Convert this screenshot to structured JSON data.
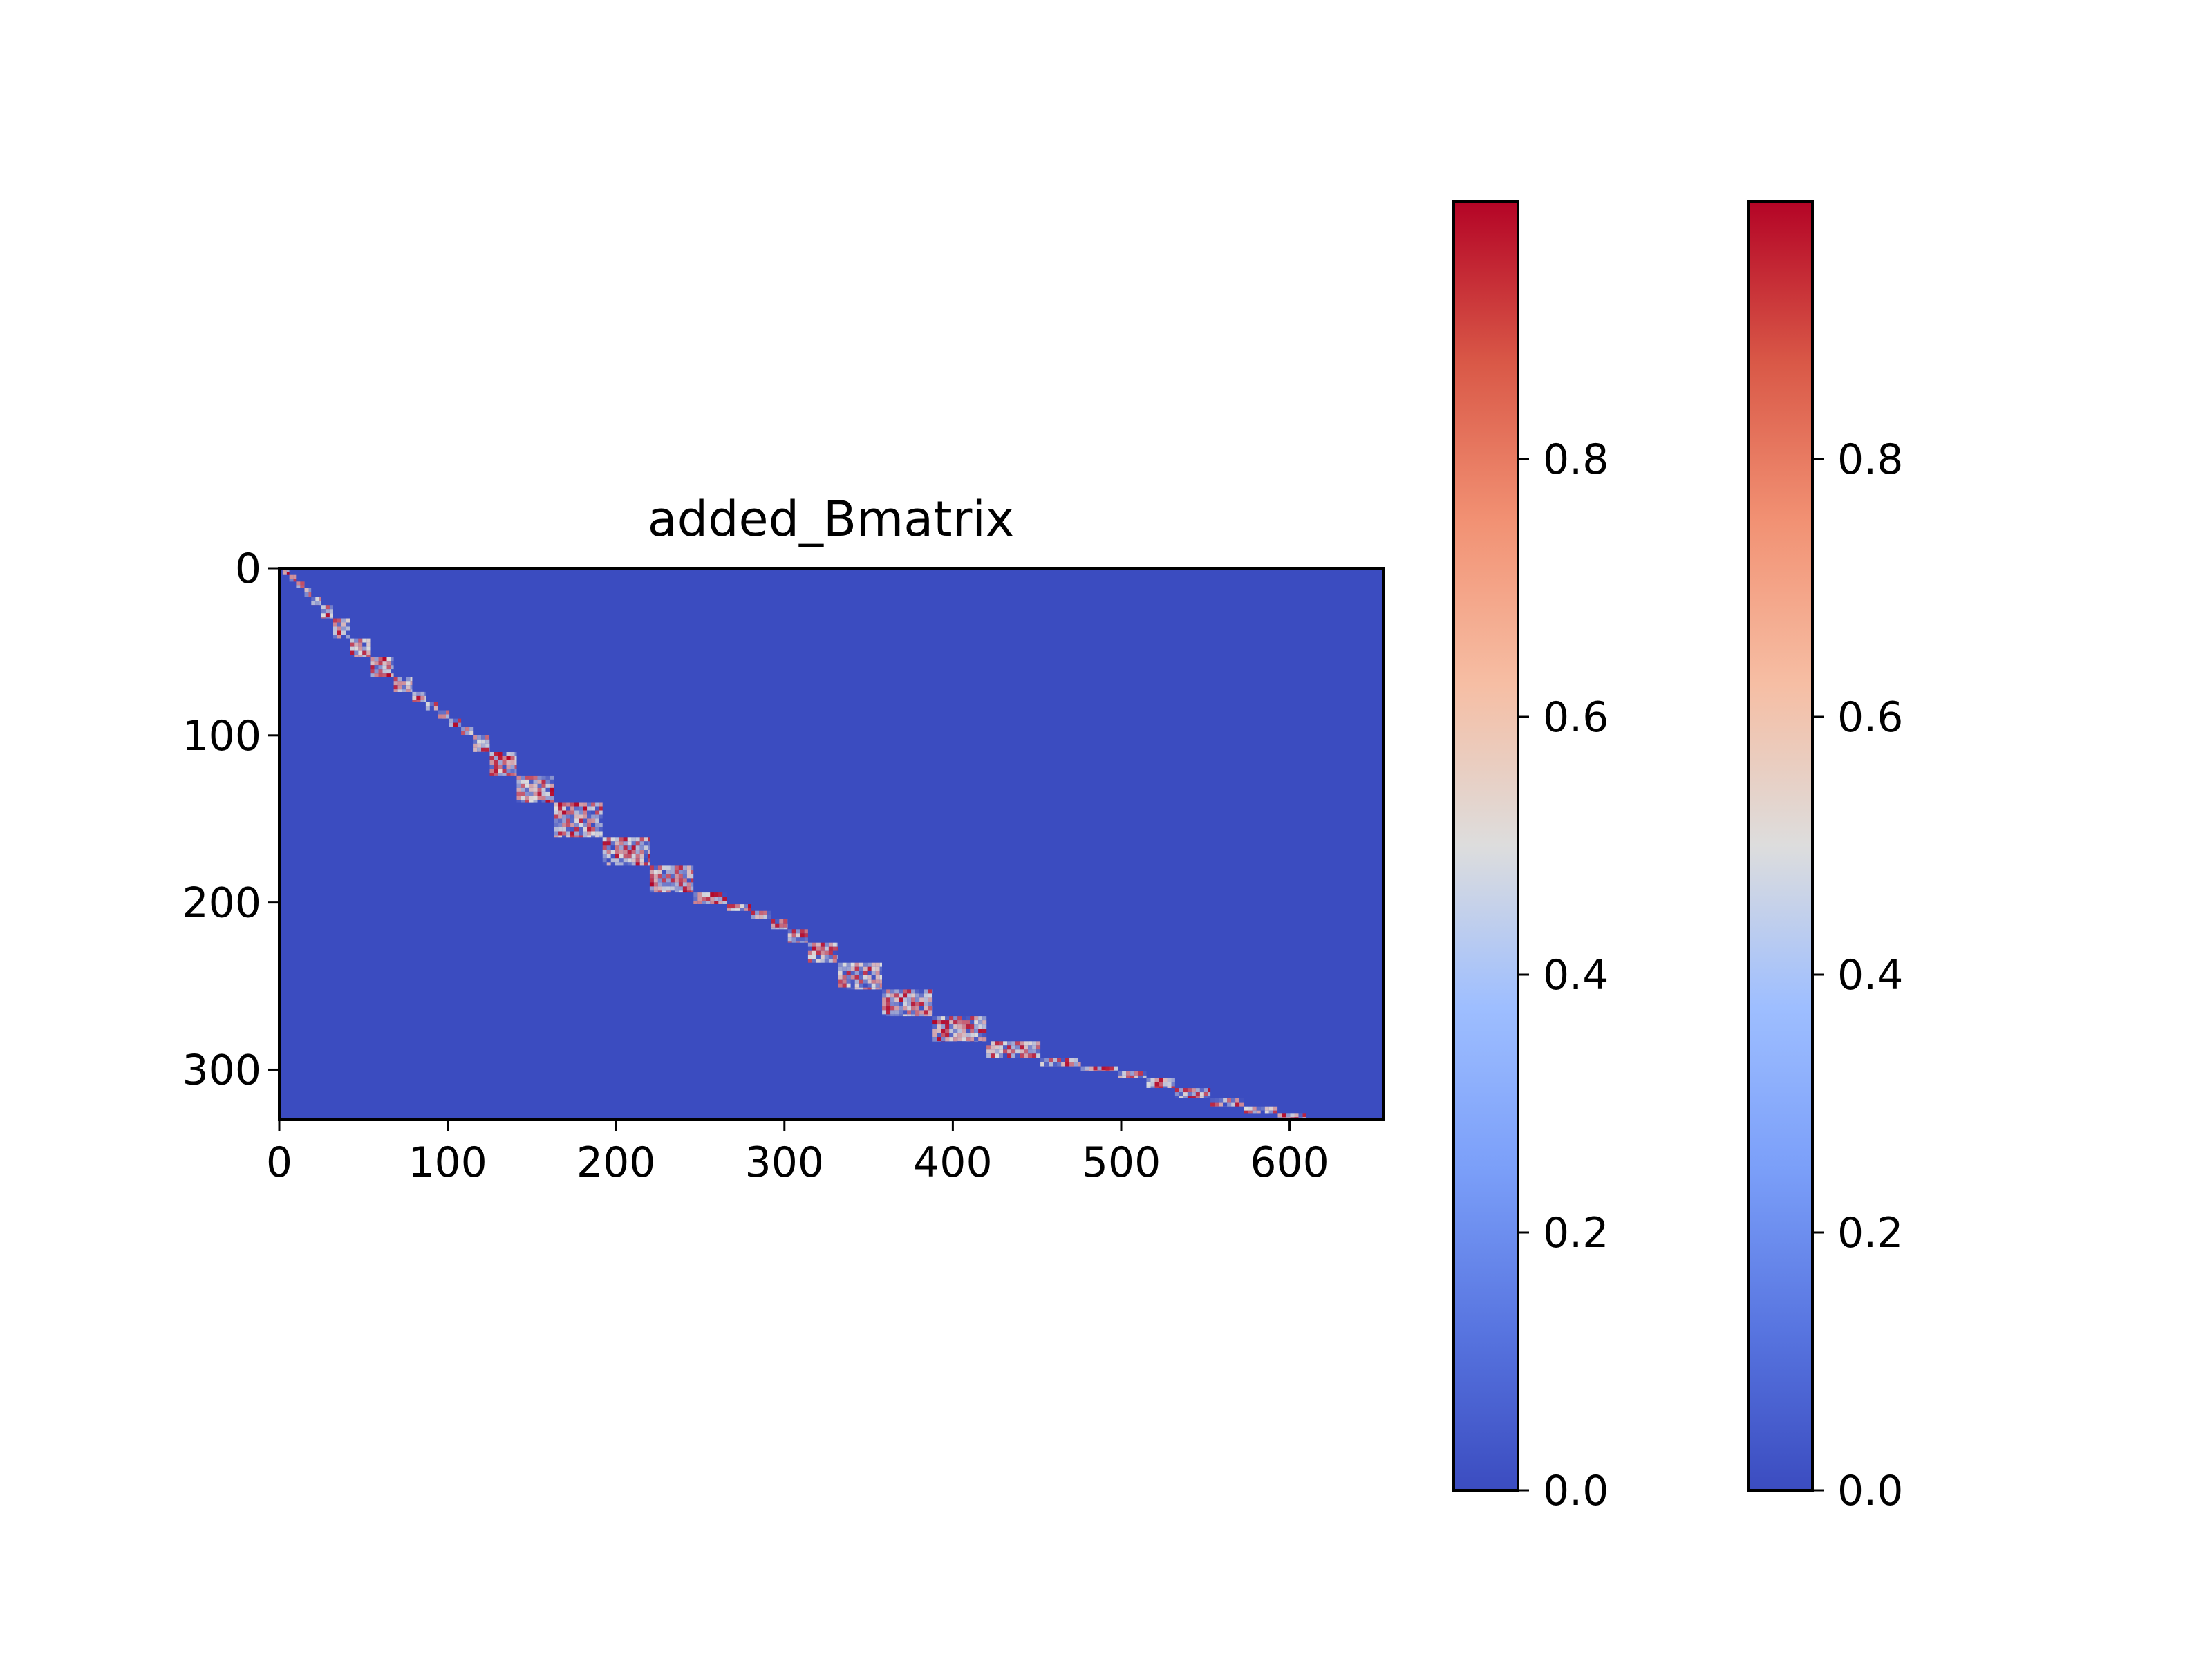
{
  "chart_data": {
    "type": "heatmap",
    "title": "added_Bmatrix",
    "xlabel": "",
    "ylabel": "",
    "x_range": [
      0,
      656
    ],
    "y_range": [
      330,
      0
    ],
    "x_ticks": [
      0,
      100,
      200,
      300,
      400,
      500,
      600
    ],
    "x_tick_labels": [
      "0",
      "100",
      "200",
      "300",
      "400",
      "500",
      "600"
    ],
    "y_ticks": [
      0,
      100,
      200,
      300
    ],
    "y_tick_labels": [
      "0",
      "100",
      "200",
      "300"
    ],
    "colormap": "coolwarm",
    "colormap_low": "#3b4cc0",
    "colormap_mid": "#dddddd",
    "colormap_high": "#b40426",
    "background_value": 0.0,
    "value_range": [
      0.0,
      1.0
    ],
    "blocks": [
      {
        "x": [
          2,
          6
        ],
        "y": [
          0,
          4
        ]
      },
      {
        "x": [
          6,
          10
        ],
        "y": [
          4,
          8
        ]
      },
      {
        "x": [
          10,
          15
        ],
        "y": [
          8,
          12
        ]
      },
      {
        "x": [
          15,
          19
        ],
        "y": [
          12,
          17
        ]
      },
      {
        "x": [
          19,
          25
        ],
        "y": [
          17,
          22
        ]
      },
      {
        "x": [
          25,
          32
        ],
        "y": [
          22,
          30
        ]
      },
      {
        "x": [
          32,
          42
        ],
        "y": [
          30,
          42
        ]
      },
      {
        "x": [
          42,
          54
        ],
        "y": [
          42,
          53
        ]
      },
      {
        "x": [
          54,
          68
        ],
        "y": [
          53,
          65
        ]
      },
      {
        "x": [
          68,
          79
        ],
        "y": [
          65,
          74
        ]
      },
      {
        "x": [
          79,
          87
        ],
        "y": [
          74,
          80
        ]
      },
      {
        "x": [
          87,
          94
        ],
        "y": [
          80,
          85
        ]
      },
      {
        "x": [
          94,
          101
        ],
        "y": [
          85,
          90
        ]
      },
      {
        "x": [
          101,
          108
        ],
        "y": [
          90,
          95
        ]
      },
      {
        "x": [
          108,
          115
        ],
        "y": [
          95,
          100
        ]
      },
      {
        "x": [
          115,
          125
        ],
        "y": [
          100,
          110
        ]
      },
      {
        "x": [
          125,
          141
        ],
        "y": [
          110,
          124
        ]
      },
      {
        "x": [
          141,
          163
        ],
        "y": [
          124,
          140
        ]
      },
      {
        "x": [
          163,
          192
        ],
        "y": [
          140,
          161
        ]
      },
      {
        "x": [
          192,
          220
        ],
        "y": [
          161,
          178
        ]
      },
      {
        "x": [
          220,
          246
        ],
        "y": [
          178,
          194
        ]
      },
      {
        "x": [
          246,
          266
        ],
        "y": [
          194,
          201
        ]
      },
      {
        "x": [
          266,
          280
        ],
        "y": [
          201,
          205
        ]
      },
      {
        "x": [
          280,
          292
        ],
        "y": [
          205,
          210
        ]
      },
      {
        "x": [
          292,
          302
        ],
        "y": [
          210,
          216
        ]
      },
      {
        "x": [
          302,
          314
        ],
        "y": [
          216,
          224
        ]
      },
      {
        "x": [
          314,
          332
        ],
        "y": [
          224,
          236
        ]
      },
      {
        "x": [
          332,
          358
        ],
        "y": [
          236,
          252
        ]
      },
      {
        "x": [
          358,
          388
        ],
        "y": [
          252,
          268
        ]
      },
      {
        "x": [
          388,
          420
        ],
        "y": [
          268,
          283
        ]
      },
      {
        "x": [
          420,
          452
        ],
        "y": [
          283,
          293
        ]
      },
      {
        "x": [
          452,
          476
        ],
        "y": [
          293,
          298
        ]
      },
      {
        "x": [
          476,
          498
        ],
        "y": [
          298,
          301
        ]
      },
      {
        "x": [
          498,
          515
        ],
        "y": [
          301,
          305
        ]
      },
      {
        "x": [
          515,
          532
        ],
        "y": [
          305,
          311
        ]
      },
      {
        "x": [
          532,
          553
        ],
        "y": [
          311,
          317
        ]
      },
      {
        "x": [
          553,
          573
        ],
        "y": [
          317,
          322
        ]
      },
      {
        "x": [
          573,
          593
        ],
        "y": [
          322,
          326
        ]
      },
      {
        "x": [
          593,
          610
        ],
        "y": [
          326,
          329
        ]
      }
    ],
    "colorbars": [
      {
        "ticks": [
          0.0,
          0.2,
          0.4,
          0.6,
          0.8
        ],
        "tick_labels": [
          "0.0",
          "0.2",
          "0.4",
          "0.6",
          "0.8"
        ],
        "range": [
          0.0,
          1.0
        ]
      },
      {
        "ticks": [
          0.0,
          0.2,
          0.4,
          0.6,
          0.8
        ],
        "tick_labels": [
          "0.0",
          "0.2",
          "0.4",
          "0.6",
          "0.8"
        ],
        "range": [
          0.0,
          1.0
        ]
      }
    ]
  }
}
